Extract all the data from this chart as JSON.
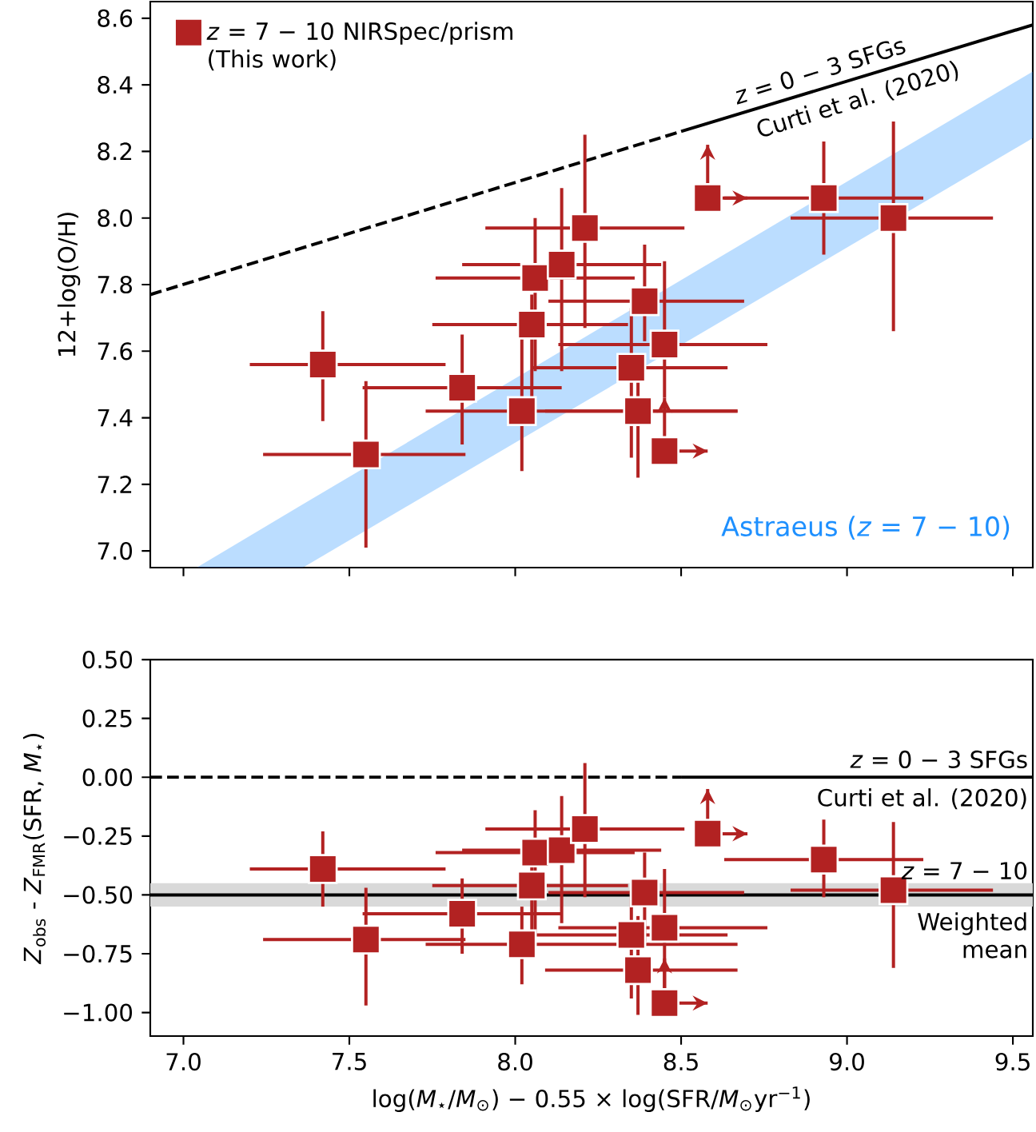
{
  "chart_data": [
    {
      "type": "scatter",
      "ylabel": "12+log(O/H)",
      "xlim": [
        6.9,
        9.56
      ],
      "ylim": [
        6.95,
        8.65
      ],
      "xticks": [
        {
          "value": 7.0,
          "label": null
        },
        {
          "value": 7.5,
          "label": null
        },
        {
          "value": 8.0,
          "label": null
        },
        {
          "value": 8.5,
          "label": null
        },
        {
          "value": 9.0,
          "label": null
        },
        {
          "value": 9.5,
          "label": null
        }
      ],
      "yticks": [
        {
          "value": 7.0,
          "label": "7.0"
        },
        {
          "value": 7.2,
          "label": "7.2"
        },
        {
          "value": 7.4,
          "label": "7.4"
        },
        {
          "value": 7.6,
          "label": "7.6"
        },
        {
          "value": 7.8,
          "label": "7.8"
        },
        {
          "value": 8.0,
          "label": "8.0"
        },
        {
          "value": 8.2,
          "label": "8.2"
        },
        {
          "value": 8.4,
          "label": "8.4"
        },
        {
          "value": 8.6,
          "label": "8.6"
        }
      ],
      "tick_labels": "y",
      "legend": "top left",
      "series": [
        {
          "type": "line",
          "name": "Astraeus (*z* = 7 − 10)",
          "color": "#1e90ff",
          "x": [
            7.04,
            7.36,
            9.56
          ],
          "values": [
            null,
            null,
            null
          ],
          "lower": [
            6.95,
            6.95,
            8.24
          ],
          "upper": [
            6.95,
            7.14,
            8.44
          ]
        },
        {
          "type": "line",
          "color": "#000000",
          "line_style": "dashed",
          "x": [
            6.9,
            8.5
          ],
          "values": [
            7.77,
            8.26
          ]
        },
        {
          "type": "line",
          "color": "#000000",
          "line_style": "solid",
          "x": [
            8.5,
            9.56
          ],
          "values": [
            8.26,
            8.58
          ]
        },
        {
          "type": "scatter",
          "name": "*z* = 7 − 10 NIRSpec/prism (This work)",
          "marker": "square",
          "color": "#b22222",
          "x": [
            7.42,
            7.55,
            7.84,
            8.02,
            8.05,
            8.06,
            8.14,
            8.21,
            8.35,
            8.37,
            8.39,
            8.45,
            8.45,
            8.58,
            8.93,
            9.14
          ],
          "values": [
            7.56,
            7.29,
            7.49,
            7.42,
            7.68,
            7.82,
            7.86,
            7.97,
            7.55,
            7.42,
            7.75,
            7.62,
            7.3,
            8.06,
            8.06,
            8.0
          ],
          "errors": [
            [
              7.39,
              7.72
            ],
            [
              7.01,
              7.51
            ],
            [
              7.32,
              7.65
            ],
            [
              7.24,
              7.64
            ],
            [
              7.41,
              7.77
            ],
            [
              7.54,
              8.0
            ],
            [
              7.54,
              8.09
            ],
            [
              7.67,
              8.25
            ],
            [
              7.28,
              7.73
            ],
            [
              7.22,
              7.58
            ],
            [
              7.63,
              7.92
            ],
            [
              7.46,
              7.87
            ],
            [
              7.3,
              7.46
            ],
            [
              8.06,
              8.22
            ],
            [
              7.89,
              8.23
            ],
            [
              7.66,
              8.29
            ]
          ],
          "xerrors": [
            [
              7.2,
              7.79
            ],
            [
              7.24,
              7.85
            ],
            [
              7.54,
              8.14
            ],
            [
              7.73,
              8.67
            ],
            [
              7.75,
              8.34
            ],
            [
              7.76,
              8.36
            ],
            [
              7.84,
              8.44
            ],
            [
              7.91,
              8.51
            ],
            [
              8.05,
              8.64
            ],
            [
              8.09,
              8.67
            ],
            [
              8.1,
              8.69
            ],
            [
              8.13,
              8.76
            ],
            [
              8.45,
              8.58
            ],
            [
              8.58,
              8.7
            ],
            [
              8.63,
              9.23
            ],
            [
              8.83,
              9.44
            ]
          ]
        }
      ],
      "annotations": [
        {
          "text": "*z* = 0 − 3 SFGs",
          "x": 8.93,
          "y": 8.36
        },
        {
          "text": "Curti et al. (2020)",
          "x": 9.02,
          "y": 8.41
        }
      ]
    },
    {
      "type": "scatter",
      "ylabel": "*Z*$_{obs}$ - *Z*$_{FMR}$(SFR, *M*$_{⋆}$)",
      "xlabel": "log(*M*$_{⋆}$/*M*$_{⊙}$) − 0.55 × log(SFR/*M*$_{⊙}$yr$^{−1}$)",
      "xlim": [
        6.9,
        9.56
      ],
      "ylim": [
        -1.1,
        0.5
      ],
      "xticks": [
        {
          "value": 7.0,
          "label": "7.0"
        },
        {
          "value": 7.5,
          "label": "7.5"
        },
        {
          "value": 8.0,
          "label": "8.0"
        },
        {
          "value": 8.5,
          "label": "8.5"
        },
        {
          "value": 9.0,
          "label": "9.0"
        },
        {
          "value": 9.5,
          "label": "9.5"
        }
      ],
      "yticks": [
        {
          "value": -1.0,
          "label": "−1.00"
        },
        {
          "value": -0.75,
          "label": "−0.75"
        },
        {
          "value": -0.5,
          "label": "−0.50"
        },
        {
          "value": -0.25,
          "label": "−0.25"
        },
        {
          "value": 0.0,
          "label": "0.00"
        },
        {
          "value": 0.25,
          "label": "0.25"
        },
        {
          "value": 0.5,
          "label": "0.50"
        }
      ],
      "bands": [
        {
          "axis": "y",
          "from": -0.55,
          "to": -0.45,
          "color": "#d9d9d9"
        }
      ],
      "ref_lines": [
        {
          "axis": "y",
          "value": -0.5,
          "color": "#000000"
        }
      ],
      "series": [
        {
          "type": "line",
          "color": "#000000",
          "line_style": "dashed",
          "x": [
            6.9,
            8.5
          ],
          "values": [
            0.0,
            0.0
          ]
        },
        {
          "type": "line",
          "color": "#000000",
          "line_style": "solid",
          "x": [
            8.5,
            9.56
          ],
          "values": [
            0.0,
            0.0
          ]
        },
        {
          "type": "scatter",
          "marker": "square",
          "color": "#b22222",
          "x": [
            7.42,
            7.55,
            7.84,
            8.02,
            8.05,
            8.06,
            8.14,
            8.21,
            8.35,
            8.37,
            8.39,
            8.45,
            8.45,
            8.58,
            8.93,
            9.14
          ],
          "values": [
            -0.39,
            -0.69,
            -0.58,
            -0.71,
            -0.46,
            -0.32,
            -0.31,
            -0.22,
            -0.67,
            -0.82,
            -0.49,
            -0.64,
            -0.96,
            -0.24,
            -0.35,
            -0.48
          ],
          "errors": [
            [
              -0.55,
              -0.23
            ],
            [
              -0.97,
              -0.47
            ],
            [
              -0.75,
              -0.43
            ],
            [
              -0.88,
              -0.55
            ],
            [
              -0.65,
              -0.36
            ],
            [
              -0.67,
              -0.14
            ],
            [
              -0.62,
              -0.08
            ],
            [
              -0.51,
              0.06
            ],
            [
              -0.94,
              -0.48
            ],
            [
              -1.01,
              -0.59
            ],
            [
              -0.7,
              -0.32
            ],
            [
              -0.91,
              -0.39
            ],
            [
              -0.96,
              -0.77
            ],
            [
              -0.24,
              -0.05
            ],
            [
              -0.51,
              -0.18
            ],
            [
              -0.81,
              -0.19
            ]
          ],
          "xerrors": [
            [
              7.2,
              7.79
            ],
            [
              7.24,
              7.85
            ],
            [
              7.54,
              8.14
            ],
            [
              7.73,
              8.67
            ],
            [
              7.75,
              8.34
            ],
            [
              7.76,
              8.36
            ],
            [
              7.84,
              8.44
            ],
            [
              7.91,
              8.51
            ],
            [
              8.05,
              8.64
            ],
            [
              8.09,
              8.67
            ],
            [
              8.1,
              8.69
            ],
            [
              8.13,
              8.76
            ],
            [
              8.45,
              8.58
            ],
            [
              8.58,
              8.7
            ],
            [
              8.63,
              9.23
            ],
            [
              8.83,
              9.44
            ]
          ]
        }
      ],
      "annotations": [
        {
          "text": "*z* = 0 − 3 SFGs",
          "x": 9.56,
          "y": 0.0
        },
        {
          "text": "Curti et al. (2020)",
          "x": 9.56,
          "y": 0.0
        },
        {
          "text": "*z* = 7 − 10",
          "x": 9.56,
          "y": -0.5
        },
        {
          "text": "Weighted mean",
          "x": 9.56,
          "y": -0.5
        }
      ]
    }
  ]
}
